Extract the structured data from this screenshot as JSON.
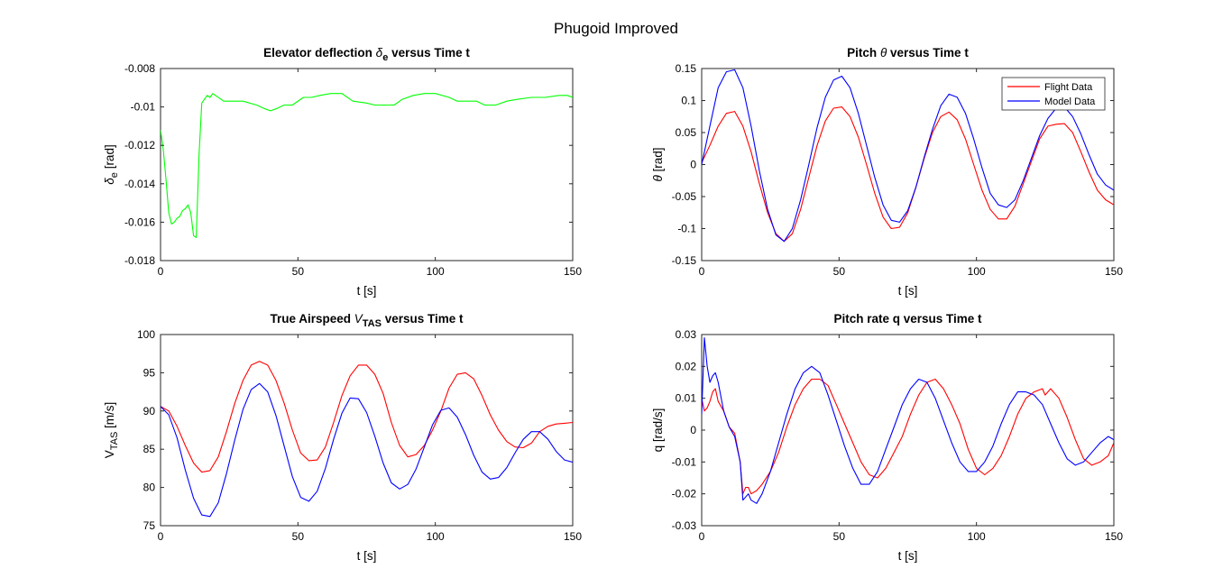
{
  "figure_title": "Phugoid Improved",
  "chart_data": [
    {
      "type": "line",
      "title": "Elevator deflection δe versus Time t",
      "title_parts": {
        "pre": "Elevator deflection ",
        "sym": "δ",
        "sub": "e",
        "post": " versus Time t"
      },
      "xlabel": "t [s]",
      "ylabel_parts": {
        "sym": "δ",
        "sub": "e",
        "post": " [rad]"
      },
      "xlim": [
        0,
        150
      ],
      "ylim": [
        -0.018,
        -0.008
      ],
      "xticks": [
        0,
        50,
        100,
        150
      ],
      "xtick_labels": [
        "0",
        "50",
        "100",
        "150"
      ],
      "yticks": [
        -0.018,
        -0.016,
        -0.014,
        -0.012,
        -0.01,
        -0.008
      ],
      "ytick_labels": [
        "-0.018",
        "-0.016",
        "-0.014",
        "-0.012",
        "-0.01",
        "-0.008"
      ],
      "grid": false,
      "series": [
        {
          "color": "#00ff00",
          "x": [
            0,
            1,
            2,
            3,
            4,
            5,
            6,
            7,
            8,
            9,
            10,
            11,
            12,
            13,
            14,
            15,
            16,
            17,
            18,
            19,
            20,
            23,
            26,
            30,
            35,
            38,
            40,
            42,
            45,
            48,
            52,
            55,
            58,
            62,
            66,
            70,
            75,
            78,
            80,
            85,
            88,
            92,
            96,
            100,
            105,
            108,
            110,
            115,
            118,
            122,
            126,
            130,
            135,
            140,
            145,
            148,
            150
          ],
          "y": [
            -0.0112,
            -0.0122,
            -0.0138,
            -0.0155,
            -0.0161,
            -0.016,
            -0.0158,
            -0.0157,
            -0.0154,
            -0.0153,
            -0.0151,
            -0.0155,
            -0.0167,
            -0.0168,
            -0.0125,
            -0.0098,
            -0.0096,
            -0.0094,
            -0.0095,
            -0.0093,
            -0.0094,
            -0.0097,
            -0.0097,
            -0.0097,
            -0.0099,
            -0.0101,
            -0.0102,
            -0.0101,
            -0.0099,
            -0.0099,
            -0.0095,
            -0.0095,
            -0.0094,
            -0.0093,
            -0.0093,
            -0.0097,
            -0.0098,
            -0.0099,
            -0.0099,
            -0.0099,
            -0.0096,
            -0.0094,
            -0.0093,
            -0.0093,
            -0.0095,
            -0.0097,
            -0.0097,
            -0.0097,
            -0.0099,
            -0.0099,
            -0.0097,
            -0.0096,
            -0.0095,
            -0.0095,
            -0.0094,
            -0.0094,
            -0.0095
          ]
        }
      ]
    },
    {
      "type": "line",
      "title": "Pitch θ versus Time t",
      "title_parts": {
        "pre": "Pitch ",
        "sym": "θ",
        "sub": "",
        "post": " versus Time t"
      },
      "xlabel": "t [s]",
      "ylabel_parts": {
        "sym": "θ",
        "sub": "",
        "post": " [rad]"
      },
      "xlim": [
        0,
        150
      ],
      "ylim": [
        -0.15,
        0.15
      ],
      "xticks": [
        0,
        50,
        100,
        150
      ],
      "xtick_labels": [
        "0",
        "50",
        "100",
        "150"
      ],
      "yticks": [
        -0.15,
        -0.1,
        -0.05,
        0,
        0.05,
        0.1,
        0.15
      ],
      "ytick_labels": [
        "-0.15",
        "-0.1",
        "-0.05",
        "0",
        "0.05",
        "0.1",
        "0.15"
      ],
      "grid": false,
      "legend": {
        "placement": "top-right",
        "entries": [
          "Flight Data",
          "Model Data"
        ]
      },
      "series": [
        {
          "name": "Flight Data",
          "color": "#ff0000",
          "x": [
            0,
            3,
            6,
            9,
            12,
            15,
            18,
            21,
            24,
            27,
            30,
            33,
            36,
            39,
            42,
            45,
            48,
            51,
            54,
            57,
            60,
            63,
            66,
            69,
            72,
            75,
            78,
            81,
            84,
            87,
            90,
            93,
            96,
            99,
            102,
            105,
            108,
            111,
            114,
            117,
            120,
            123,
            126,
            129,
            132,
            135,
            138,
            141,
            144,
            147,
            150
          ],
          "y": [
            0.003,
            0.03,
            0.06,
            0.08,
            0.083,
            0.06,
            0.02,
            -0.03,
            -0.075,
            -0.108,
            -0.12,
            -0.108,
            -0.07,
            -0.02,
            0.03,
            0.068,
            0.088,
            0.09,
            0.075,
            0.043,
            0.0,
            -0.045,
            -0.082,
            -0.1,
            -0.098,
            -0.075,
            -0.035,
            0.01,
            0.05,
            0.075,
            0.082,
            0.07,
            0.04,
            0.0,
            -0.04,
            -0.07,
            -0.085,
            -0.085,
            -0.065,
            -0.03,
            0.005,
            0.04,
            0.06,
            0.063,
            0.064,
            0.05,
            0.02,
            -0.012,
            -0.04,
            -0.055,
            -0.063
          ]
        },
        {
          "name": "Model Data",
          "color": "#0000ff",
          "x": [
            0,
            3,
            6,
            9,
            12,
            15,
            18,
            21,
            24,
            27,
            30,
            33,
            36,
            39,
            42,
            45,
            48,
            51,
            54,
            57,
            60,
            63,
            66,
            69,
            72,
            75,
            78,
            81,
            84,
            87,
            90,
            93,
            96,
            99,
            102,
            105,
            108,
            111,
            114,
            117,
            120,
            123,
            126,
            129,
            132,
            135,
            138,
            141,
            144,
            147,
            150
          ],
          "y": [
            0.0,
            0.06,
            0.12,
            0.145,
            0.148,
            0.12,
            0.06,
            -0.01,
            -0.07,
            -0.11,
            -0.12,
            -0.1,
            -0.055,
            0.0,
            0.058,
            0.105,
            0.132,
            0.138,
            0.12,
            0.08,
            0.03,
            -0.02,
            -0.063,
            -0.087,
            -0.09,
            -0.072,
            -0.035,
            0.012,
            0.055,
            0.092,
            0.11,
            0.105,
            0.08,
            0.04,
            -0.005,
            -0.045,
            -0.063,
            -0.067,
            -0.055,
            -0.025,
            0.01,
            0.045,
            0.072,
            0.088,
            0.09,
            0.075,
            0.048,
            0.015,
            -0.015,
            -0.032,
            -0.04
          ]
        }
      ]
    },
    {
      "type": "line",
      "title": "True Airspeed VTAS versus Time t",
      "title_parts": {
        "pre": "True Airspeed ",
        "sym": "V",
        "sub": "TAS",
        "post": " versus Time t"
      },
      "xlabel": "t [s]",
      "ylabel_parts": {
        "sym": "V",
        "sub": "TAS",
        "post": " [m/s]"
      },
      "xlim": [
        0,
        150
      ],
      "ylim": [
        75,
        100
      ],
      "xticks": [
        0,
        50,
        100,
        150
      ],
      "xtick_labels": [
        "0",
        "50",
        "100",
        "150"
      ],
      "yticks": [
        75,
        80,
        85,
        90,
        95,
        100
      ],
      "ytick_labels": [
        "75",
        "80",
        "85",
        "90",
        "95",
        "100"
      ],
      "grid": false,
      "series": [
        {
          "name": "Flight Data",
          "color": "#ff0000",
          "x": [
            0,
            3,
            6,
            9,
            12,
            15,
            18,
            21,
            24,
            27,
            30,
            33,
            36,
            39,
            42,
            45,
            48,
            51,
            54,
            57,
            60,
            63,
            66,
            69,
            72,
            75,
            78,
            81,
            84,
            87,
            90,
            93,
            96,
            99,
            102,
            105,
            108,
            111,
            114,
            117,
            120,
            123,
            126,
            129,
            132,
            135,
            138,
            141,
            144,
            147,
            150
          ],
          "y": [
            90.6,
            90.0,
            88.0,
            85.5,
            83.2,
            82.0,
            82.2,
            84.0,
            87.3,
            91.0,
            94.0,
            96.0,
            96.5,
            96.0,
            94.0,
            91.0,
            87.5,
            84.5,
            83.5,
            83.6,
            85.3,
            88.5,
            92.0,
            94.6,
            96.0,
            96.0,
            94.8,
            92.3,
            88.5,
            85.5,
            84.0,
            84.3,
            85.5,
            87.5,
            90.0,
            93.0,
            94.8,
            95.0,
            94.2,
            92.0,
            89.5,
            87.5,
            86.0,
            85.3,
            85.2,
            85.8,
            87.3,
            88.0,
            88.3,
            88.4,
            88.5
          ]
        },
        {
          "name": "Model Data",
          "color": "#0000ff",
          "x": [
            0,
            3,
            6,
            9,
            12,
            15,
            18,
            21,
            24,
            27,
            30,
            33,
            36,
            39,
            42,
            45,
            48,
            51,
            54,
            57,
            60,
            63,
            66,
            69,
            72,
            75,
            78,
            81,
            84,
            87,
            90,
            93,
            96,
            99,
            102,
            105,
            108,
            111,
            114,
            117,
            120,
            123,
            126,
            129,
            132,
            135,
            138,
            141,
            144,
            147,
            150
          ],
          "y": [
            90.6,
            89.5,
            86.5,
            82.3,
            78.6,
            76.4,
            76.2,
            78.0,
            81.8,
            86.2,
            90.2,
            92.8,
            93.6,
            92.5,
            89.4,
            85.4,
            81.4,
            78.7,
            78.2,
            79.5,
            82.5,
            86.3,
            89.7,
            91.7,
            91.6,
            89.8,
            86.7,
            83.2,
            80.6,
            79.8,
            80.4,
            82.4,
            85.3,
            88.2,
            90.1,
            90.4,
            89.2,
            86.9,
            84.2,
            82.0,
            81.1,
            81.3,
            82.6,
            84.5,
            86.3,
            87.3,
            87.3,
            86.3,
            84.7,
            83.6,
            83.3
          ]
        }
      ]
    },
    {
      "type": "line",
      "title": "Pitch rate q versus Time t",
      "title_parts": {
        "pre": "Pitch rate q versus Time t",
        "sym": "",
        "sub": "",
        "post": ""
      },
      "xlabel": "t [s]",
      "ylabel_parts": {
        "sym": "q",
        "sub": "",
        "post": " [rad/s]"
      },
      "xlim": [
        0,
        150
      ],
      "ylim": [
        -0.03,
        0.03
      ],
      "xticks": [
        0,
        50,
        100,
        150
      ],
      "xtick_labels": [
        "0",
        "50",
        "100",
        "150"
      ],
      "yticks": [
        -0.03,
        -0.02,
        -0.01,
        0,
        0.01,
        0.02,
        0.03
      ],
      "ytick_labels": [
        "-0.03",
        "-0.02",
        "-0.01",
        "0",
        "0.01",
        "0.02",
        "0.03"
      ],
      "grid": false,
      "series": [
        {
          "name": "Flight Data",
          "color": "#ff0000",
          "x": [
            0,
            1,
            2,
            3,
            4,
            5,
            6,
            8,
            10,
            12,
            14,
            15,
            16,
            17,
            18,
            20,
            22,
            25,
            28,
            31,
            34,
            37,
            40,
            43,
            46,
            49,
            52,
            55,
            58,
            61,
            64,
            67,
            70,
            73,
            76,
            79,
            82,
            85,
            88,
            91,
            94,
            97,
            100,
            103,
            106,
            109,
            112,
            115,
            118,
            121,
            124,
            125,
            127,
            130,
            133,
            136,
            139,
            142,
            145,
            148,
            150
          ],
          "y": [
            0.01,
            0.006,
            0.007,
            0.009,
            0.012,
            0.013,
            0.009,
            0.006,
            0.001,
            -0.001,
            -0.01,
            -0.02,
            -0.018,
            -0.018,
            -0.02,
            -0.019,
            -0.017,
            -0.013,
            -0.007,
            0.001,
            0.008,
            0.013,
            0.016,
            0.016,
            0.014,
            0.008,
            0.002,
            -0.004,
            -0.01,
            -0.014,
            -0.015,
            -0.012,
            -0.007,
            -0.002,
            0.005,
            0.011,
            0.015,
            0.016,
            0.013,
            0.008,
            0.002,
            -0.006,
            -0.012,
            -0.014,
            -0.012,
            -0.008,
            -0.002,
            0.005,
            0.01,
            0.012,
            0.013,
            0.011,
            0.013,
            0.01,
            0.004,
            -0.003,
            -0.009,
            -0.011,
            -0.01,
            -0.008,
            -0.004
          ]
        },
        {
          "name": "Model Data",
          "color": "#0000ff",
          "x": [
            0,
            1,
            2,
            3,
            4,
            5,
            6,
            8,
            10,
            12,
            14,
            15,
            16,
            17,
            18,
            20,
            22,
            25,
            28,
            31,
            34,
            37,
            40,
            43,
            46,
            49,
            52,
            55,
            58,
            61,
            64,
            67,
            70,
            73,
            76,
            79,
            82,
            85,
            88,
            91,
            94,
            97,
            100,
            103,
            106,
            109,
            112,
            115,
            118,
            121,
            124,
            127,
            130,
            133,
            136,
            139,
            142,
            145,
            148,
            150
          ],
          "y": [
            0.005,
            0.029,
            0.02,
            0.015,
            0.017,
            0.018,
            0.015,
            0.006,
            0.001,
            -0.002,
            -0.01,
            -0.022,
            -0.021,
            -0.02,
            -0.022,
            -0.023,
            -0.02,
            -0.013,
            -0.004,
            0.005,
            0.013,
            0.018,
            0.02,
            0.018,
            0.011,
            0.003,
            -0.005,
            -0.012,
            -0.017,
            -0.017,
            -0.013,
            -0.006,
            0.001,
            0.008,
            0.013,
            0.016,
            0.015,
            0.01,
            0.003,
            -0.004,
            -0.01,
            -0.013,
            -0.013,
            -0.01,
            -0.005,
            0.002,
            0.008,
            0.012,
            0.012,
            0.011,
            0.008,
            0.002,
            -0.004,
            -0.009,
            -0.011,
            -0.01,
            -0.007,
            -0.004,
            -0.002,
            -0.003
          ]
        }
      ]
    }
  ]
}
